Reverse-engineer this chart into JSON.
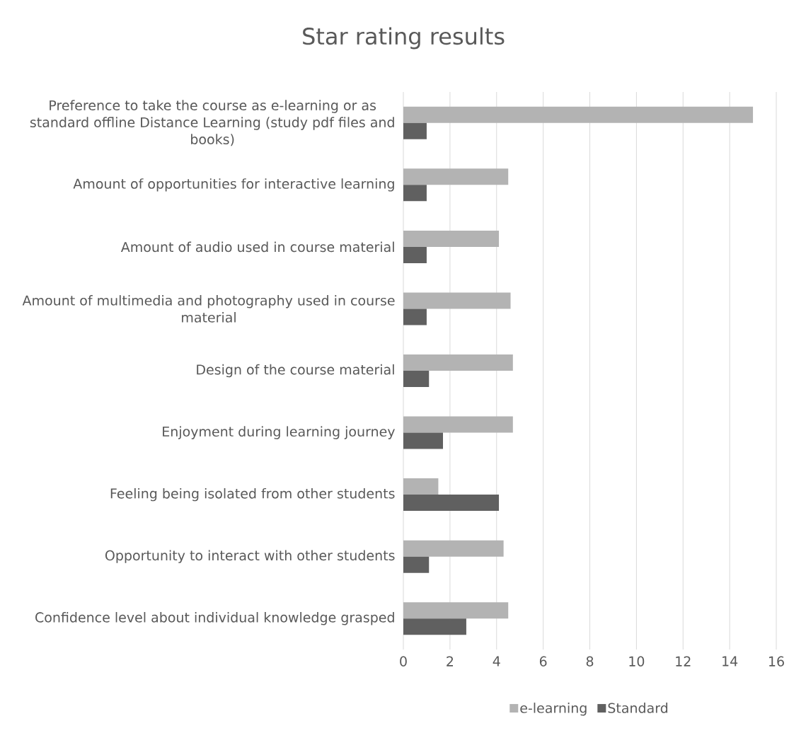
{
  "chart_data": {
    "type": "bar",
    "orientation": "horizontal",
    "title": "Star rating results",
    "categories": [
      "Preference to take the course as e-learning or as standard offline Distance Learning (study pdf files and books)",
      "Amount of opportunities for interactive learning",
      "Amount of audio used in course material",
      "Amount of multimedia and photography used in course material",
      "Design of the course material",
      "Enjoyment during learning journey",
      "Feeling being isolated from other students",
      "Opportunity to interact with other students",
      "Confidence level about individual knowledge grasped"
    ],
    "series": [
      {
        "name": "e-learning",
        "color": "#b3b3b3",
        "values": [
          15,
          4.5,
          4.1,
          4.6,
          4.7,
          4.7,
          1.5,
          4.3,
          4.5
        ]
      },
      {
        "name": "Standard",
        "color": "#606060",
        "values": [
          1,
          1,
          1,
          1,
          1.1,
          1.7,
          4.1,
          1.1,
          2.7
        ]
      }
    ],
    "xlim": [
      0,
      16
    ],
    "xticks": [
      0,
      2,
      4,
      6,
      8,
      10,
      12,
      14,
      16
    ],
    "grid": "x",
    "legend": "bottom"
  }
}
